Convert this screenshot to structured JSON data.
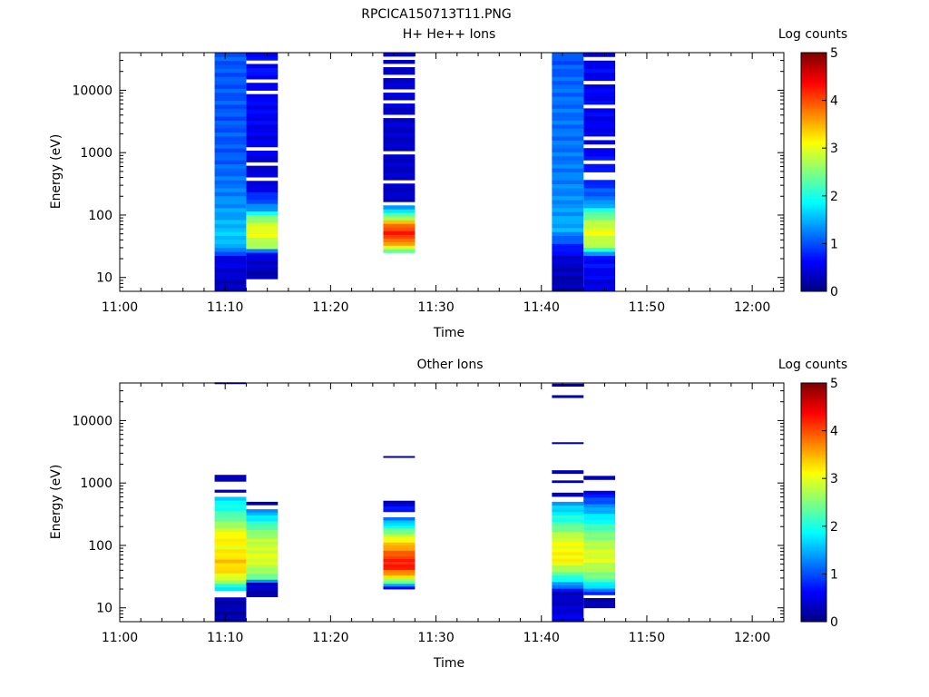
{
  "figure_title": "RPCICA150713T11.PNG",
  "colors": {
    "axis": "#000000",
    "background": "#ffffff"
  },
  "chart_data": [
    {
      "type": "heatmap",
      "title": "H+ He++ Ions",
      "xlabel": "Time",
      "ylabel": "Energy (eV)",
      "colorbar_label": "Log counts",
      "colorbar_ticks": [
        "0",
        "1",
        "2",
        "3",
        "4",
        "5"
      ],
      "colorbar_range": [
        0,
        5
      ],
      "colormap": "jet",
      "x_ticks": [
        "11:00",
        "11:10",
        "11:20",
        "11:30",
        "11:40",
        "11:50",
        "12:00"
      ],
      "y_ticks": [
        "10",
        "100",
        "1000",
        "10000"
      ],
      "y_scale": "log",
      "xlim": [
        "11:00",
        "12:03"
      ],
      "ylim": [
        6,
        40000
      ],
      "columns": [
        {
          "t0": "11:09",
          "t1": "11:12",
          "emin": 6,
          "emax": 40000,
          "bins": 60,
          "profile": [
            [
              6,
              0.25
            ],
            [
              22,
              0.55
            ],
            [
              28,
              1.35
            ],
            [
              45,
              1.65
            ],
            [
              90,
              1.45
            ],
            [
              300,
              1.2
            ],
            [
              1000,
              1.05
            ],
            [
              40000,
              1.05
            ]
          ],
          "gaps": []
        },
        {
          "t0": "11:12",
          "t1": "11:15",
          "emin": 9.5,
          "emax": 40000,
          "bins": 60,
          "profile": [
            [
              9.5,
              0.2
            ],
            [
              25,
              0.5
            ],
            [
              30,
              2.6
            ],
            [
              55,
              3.1
            ],
            [
              90,
              2.6
            ],
            [
              130,
              1.3
            ],
            [
              300,
              0.4
            ],
            [
              1000,
              0.5
            ],
            [
              40000,
              0.7
            ]
          ],
          "gaps": [
            [
              340,
              430
            ],
            [
              620,
              700
            ],
            [
              1100,
              1200
            ],
            [
              1600,
              1700
            ],
            [
              2100,
              2250
            ],
            [
              2700,
              2900
            ],
            [
              9000,
              10000
            ],
            [
              13000,
              14500
            ],
            [
              19000,
              21000
            ],
            [
              27000,
              29000
            ],
            [
              34000,
              36000
            ]
          ]
        },
        {
          "t0": "11:25",
          "t1": "11:28",
          "emin": 25,
          "emax": 40000,
          "bins": 55,
          "profile": [
            [
              25,
              2.1
            ],
            [
              32,
              3.2
            ],
            [
              40,
              3.9
            ],
            [
              55,
              4.3
            ],
            [
              75,
              3.6
            ],
            [
              100,
              2.3
            ],
            [
              135,
              1.4
            ],
            [
              170,
              0.35
            ],
            [
              40000,
              0.4
            ]
          ],
          "gaps": [
            [
              140,
              170
            ],
            [
              300,
              360
            ],
            [
              900,
              1100
            ],
            [
              1800,
              1900
            ],
            [
              3800,
              4300
            ],
            [
              6500,
              7200
            ],
            [
              9000,
              10500
            ],
            [
              16000,
              17500
            ],
            [
              24000,
              26000
            ],
            [
              32000,
              35000
            ]
          ]
        },
        {
          "t0": "11:41",
          "t1": "11:44",
          "emin": 6,
          "emax": 40000,
          "bins": 60,
          "profile": [
            [
              6,
              0.2
            ],
            [
              18,
              0.35
            ],
            [
              32,
              0.8
            ],
            [
              60,
              1.5
            ],
            [
              200,
              1.3
            ],
            [
              1000,
              1.2
            ],
            [
              10000,
              1.15
            ],
            [
              40000,
              1.0
            ]
          ],
          "gaps": []
        },
        {
          "t0": "11:44",
          "t1": "11:47",
          "emin": 6,
          "emax": 40000,
          "bins": 60,
          "profile": [
            [
              6,
              0.45
            ],
            [
              22,
              0.7
            ],
            [
              30,
              2.6
            ],
            [
              55,
              3.1
            ],
            [
              100,
              2.4
            ],
            [
              160,
              1.3
            ],
            [
              400,
              0.7
            ],
            [
              2000,
              0.55
            ],
            [
              40000,
              0.6
            ]
          ],
          "gaps": [
            [
              380,
              460
            ],
            [
              700,
              780
            ],
            [
              1200,
              1350
            ],
            [
              1700,
              1850
            ],
            [
              2700,
              2950
            ],
            [
              5500,
              6200
            ],
            [
              13000,
              14500
            ],
            [
              21000,
              23500
            ],
            [
              30000,
              33000
            ]
          ]
        }
      ]
    },
    {
      "type": "heatmap",
      "title": "Other Ions",
      "xlabel": "Time",
      "ylabel": "Energy (eV)",
      "colorbar_label": "Log counts",
      "colorbar_ticks": [
        "0",
        "1",
        "2",
        "3",
        "4",
        "5"
      ],
      "colorbar_range": [
        0,
        5
      ],
      "colormap": "jet",
      "x_ticks": [
        "11:00",
        "11:10",
        "11:20",
        "11:30",
        "11:40",
        "11:50",
        "12:00"
      ],
      "y_ticks": [
        "10",
        "100",
        "1000",
        "10000"
      ],
      "y_scale": "log",
      "xlim": [
        "11:00",
        "12:03"
      ],
      "ylim": [
        6,
        40000
      ],
      "columns": [
        {
          "t0": "11:09",
          "t1": "11:12",
          "emin": 6,
          "emax": 600,
          "bins": 36,
          "profile": [
            [
              6,
              0.2
            ],
            [
              15,
              0.25
            ],
            [
              20,
              1.6
            ],
            [
              26,
              2.6
            ],
            [
              35,
              3.2
            ],
            [
              55,
              3.4
            ],
            [
              90,
              3.1
            ],
            [
              140,
              3.2
            ],
            [
              220,
              2.6
            ],
            [
              400,
              2.0
            ],
            [
              600,
              1.7
            ]
          ],
          "gaps": [
            [
              15,
              18
            ]
          ],
          "lines": [
            [
              700,
              780,
              0.25
            ],
            [
              1050,
              1350,
              0.3
            ],
            [
              39000,
              41000,
              0.2
            ]
          ]
        },
        {
          "t0": "11:12",
          "t1": "11:15",
          "emin": 15,
          "emax": 380,
          "bins": 30,
          "profile": [
            [
              15,
              0.2
            ],
            [
              25,
              0.4
            ],
            [
              30,
              2.4
            ],
            [
              60,
              3.0
            ],
            [
              120,
              2.8
            ],
            [
              200,
              2.3
            ],
            [
              380,
              1.3
            ]
          ],
          "gaps": [],
          "lines": [
            [
              440,
              500,
              0.25
            ]
          ]
        },
        {
          "t0": "11:25",
          "t1": "11:28",
          "emin": 20,
          "emax": 520,
          "bins": 32,
          "profile": [
            [
              20,
              0.2
            ],
            [
              25,
              2.1
            ],
            [
              32,
              3.3
            ],
            [
              45,
              4.3
            ],
            [
              65,
              4.1
            ],
            [
              100,
              3.5
            ],
            [
              160,
              2.6
            ],
            [
              250,
              1.4
            ],
            [
              520,
              0.25
            ]
          ],
          "gaps": [
            [
              280,
              330
            ]
          ],
          "lines": [
            [
              2550,
              2700,
              0.25
            ]
          ]
        },
        {
          "t0": "11:41",
          "t1": "11:44",
          "emin": 6,
          "emax": 500,
          "bins": 36,
          "profile": [
            [
              6,
              0.55
            ],
            [
              10,
              0.4
            ],
            [
              18,
              0.3
            ],
            [
              22,
              1.2
            ],
            [
              35,
              2.4
            ],
            [
              60,
              3.2
            ],
            [
              120,
              3.0
            ],
            [
              250,
              2.1
            ],
            [
              500,
              1.4
            ]
          ],
          "gaps": [],
          "lines": [
            [
              600,
              700,
              0.3
            ],
            [
              1000,
              1100,
              0.3
            ],
            [
              1400,
              1600,
              0.3
            ],
            [
              4200,
              4500,
              0.25
            ],
            [
              23000,
              25500,
              0.25
            ],
            [
              35000,
              39000,
              0.25
            ]
          ]
        },
        {
          "t0": "11:44",
          "t1": "11:47",
          "emin": 10,
          "emax": 750,
          "bins": 36,
          "profile": [
            [
              10,
              0.2
            ],
            [
              15,
              0.3
            ],
            [
              20,
              1.4
            ],
            [
              30,
              2.4
            ],
            [
              60,
              3.0
            ],
            [
              100,
              2.8
            ],
            [
              180,
              2.3
            ],
            [
              400,
              1.4
            ],
            [
              750,
              0.5
            ]
          ],
          "gaps": [
            [
              15,
              17
            ]
          ],
          "lines": [
            [
              1120,
              1300,
              0.3
            ]
          ]
        }
      ]
    }
  ]
}
